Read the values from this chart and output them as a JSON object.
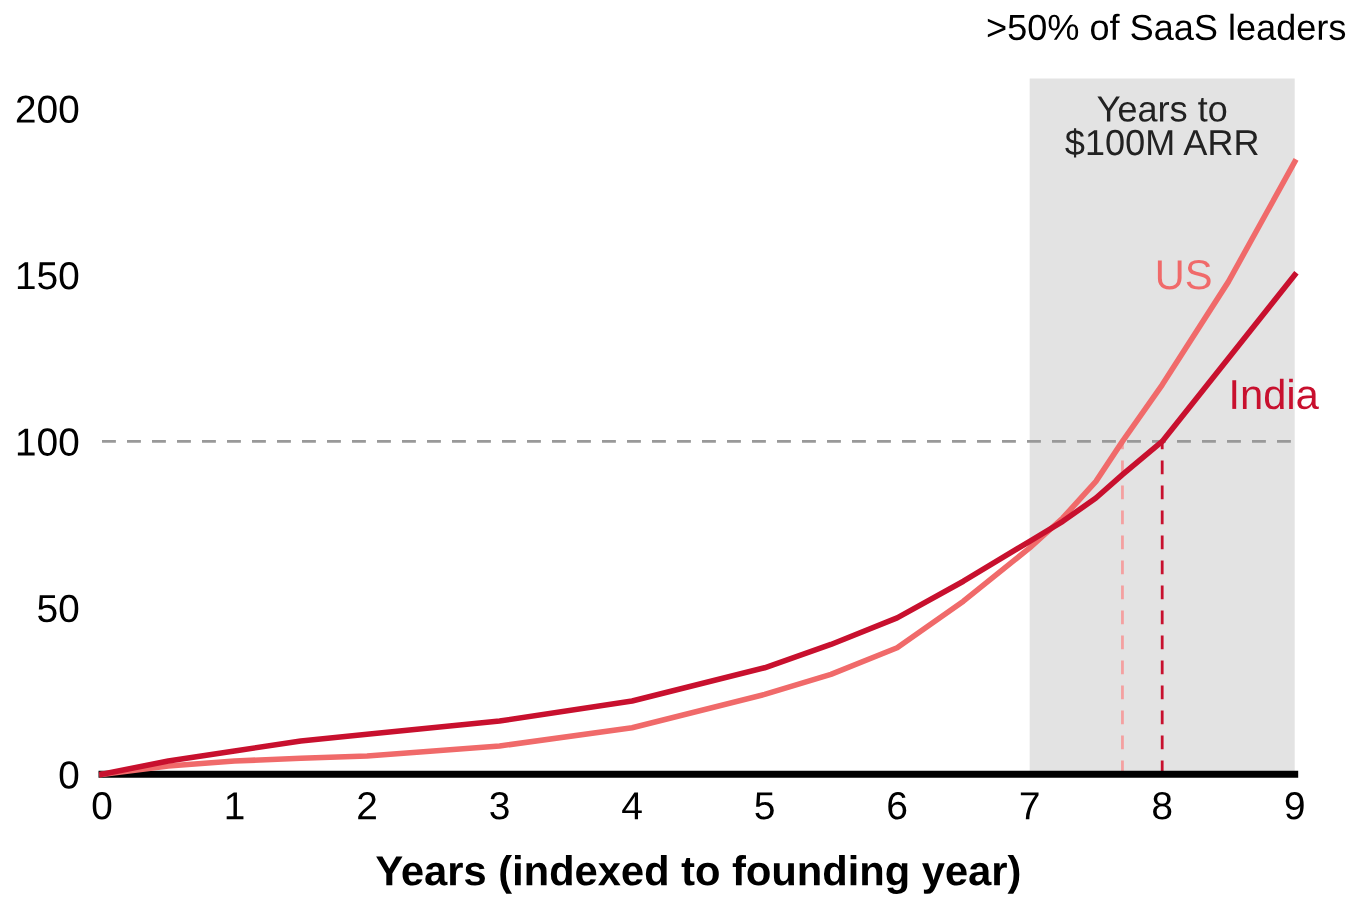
{
  "chart_data": {
    "type": "line",
    "xlabel": "Years (indexed to founding year)",
    "x": [
      0,
      0.5,
      1,
      1.5,
      2,
      3,
      4,
      5,
      5.5,
      6,
      6.5,
      7,
      7.25,
      7.5,
      7.7,
      8,
      8.5,
      9
    ],
    "series": [
      {
        "name": "US",
        "color": "#f06a6a",
        "values": [
          0,
          2.5,
          4,
          4.8,
          5.5,
          8.5,
          14,
          24,
          30,
          38,
          52,
          68,
          77,
          88,
          100,
          117,
          148,
          184
        ]
      },
      {
        "name": "India",
        "color": "#c8102e",
        "values": [
          0,
          4,
          7,
          10,
          12,
          16,
          22,
          32,
          39,
          47,
          58,
          70,
          76,
          83,
          90,
          100,
          125,
          150
        ]
      }
    ],
    "xlim": [
      0,
      9
    ],
    "xticks": [
      0,
      1,
      2,
      3,
      4,
      5,
      6,
      7,
      8,
      9
    ],
    "ylim": [
      0,
      200
    ],
    "yticks": [
      0,
      50,
      100,
      150,
      200
    ],
    "ref_lines": [
      {
        "axis": "y",
        "value": 100,
        "color": "#999999",
        "line_style": "dashed"
      },
      {
        "axis": "x",
        "value": 7.7,
        "color": "#f4a0a0",
        "line_style": "dashed"
      },
      {
        "axis": "x",
        "value": 8,
        "color": "#c8102e",
        "line_style": "dashed"
      }
    ],
    "bands": [
      {
        "axis": "x",
        "from": 7,
        "to": 9,
        "label": "Years to\n$100M ARR",
        "color": "#e3e3e3"
      }
    ],
    "annotations": [
      ">50% of SaaS leaders"
    ],
    "grid": false,
    "marker": "none",
    "line_style": "solid"
  }
}
